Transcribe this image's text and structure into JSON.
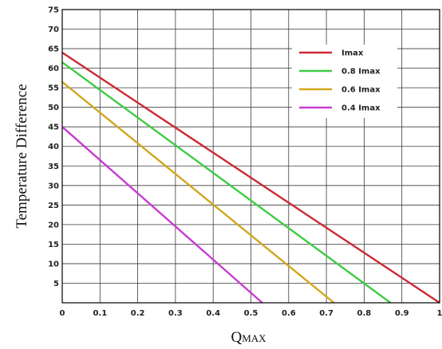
{
  "chart_data": {
    "type": "line",
    "xlabel_main": "Q",
    "xlabel_sub": "MAX",
    "ylabel": "Temperature Difference",
    "xlim": [
      0,
      1
    ],
    "ylim": [
      0,
      75
    ],
    "x_ticks": [
      "0",
      "0.1",
      "0.2",
      "0.3",
      "0.4",
      "0.5",
      "0.6",
      "0.7",
      "0.8",
      "0.9",
      "1"
    ],
    "y_ticks": [
      "5",
      "10",
      "15",
      "20",
      "25",
      "30",
      "35",
      "40",
      "45",
      "50",
      "55",
      "60",
      "65",
      "70",
      "75"
    ],
    "grid": true,
    "legend_position": "top-right",
    "series": [
      {
        "name": "Imax",
        "color": "#cc2a35",
        "x": [
          0,
          1
        ],
        "y": [
          64,
          0
        ]
      },
      {
        "name": "0.8 Imax",
        "color": "#3fcc45",
        "x": [
          0,
          0.87
        ],
        "y": [
          61.5,
          0
        ]
      },
      {
        "name": "0.6 Imax",
        "color": "#d2a71e",
        "x": [
          0,
          0.72
        ],
        "y": [
          56.5,
          0
        ]
      },
      {
        "name": "0.4 Imax",
        "color": "#c83cd2",
        "x": [
          0,
          0.53
        ],
        "y": [
          45,
          0
        ]
      }
    ]
  }
}
